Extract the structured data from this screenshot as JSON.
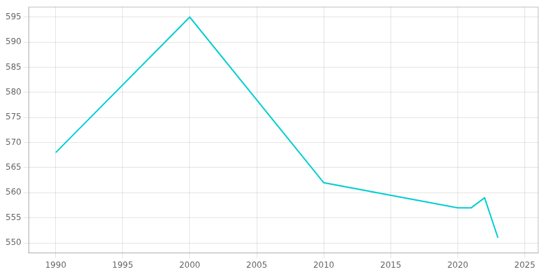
{
  "chart_data": {
    "type": "line",
    "x": [
      1990,
      2000,
      2010,
      2020,
      2021,
      2022,
      2023
    ],
    "values": [
      568,
      595,
      562,
      557,
      557,
      559,
      551
    ],
    "color": "#00CED1",
    "xlim": [
      1988,
      2026
    ],
    "ylim": [
      548,
      597
    ],
    "xticks": [
      1990,
      1995,
      2000,
      2005,
      2010,
      2015,
      2020,
      2025
    ],
    "yticks": [
      550,
      555,
      560,
      565,
      570,
      575,
      580,
      585,
      590,
      595
    ],
    "grid": true
  }
}
